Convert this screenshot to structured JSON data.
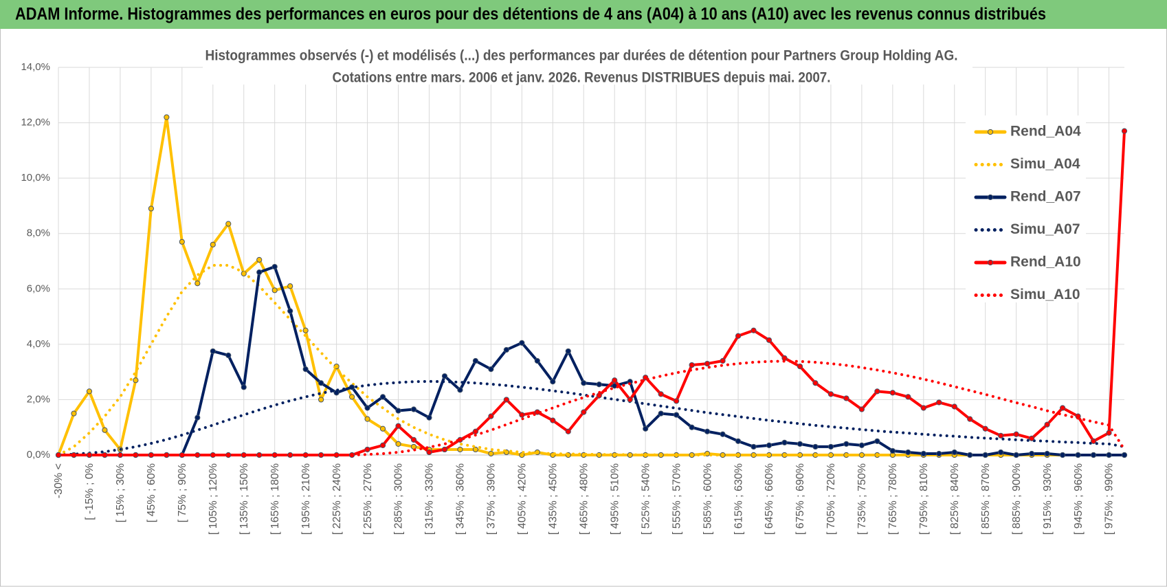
{
  "header": {
    "title": "ADAM Informe. Histogrammes des performances en euros pour des détentions de 4 ans (A04) à 10 ans (A10) avec les revenus connus distribués"
  },
  "chart_data": {
    "type": "line",
    "title": "Histogrammes observés (-) et modélisés (...) des performances par durées de détention pour Partners Group Holding AG.",
    "subtitle": "Cotations entre mars. 2006 et janv. 2026. Revenus DISTRIBUES depuis mai. 2007.",
    "categories": [
      "-30% <",
      null,
      "[ -15% ; 0%",
      null,
      "[ 15% ; 30%",
      null,
      "[ 45% ; 60%",
      null,
      "[ 75% ; 90%",
      null,
      "[ 105% ; 120%",
      null,
      "[ 135% ; 150%",
      null,
      "[ 165% ; 180%",
      null,
      "[ 195% ; 210%",
      null,
      "[ 225% ; 240%",
      null,
      "[ 255% ; 270%",
      null,
      "[ 285% ; 300%",
      null,
      "[ 315% ; 330%",
      null,
      "[ 345% ; 360%",
      null,
      "[ 375% ; 390%",
      null,
      "[ 405% ; 420%",
      null,
      "[ 435% ; 450%",
      null,
      "[ 465% ; 480%",
      null,
      "[ 495% ; 510%",
      null,
      "[ 525% ; 540%",
      null,
      "[ 555% ; 570%",
      null,
      "[ 585% ; 600%",
      null,
      "[ 615% ; 630%",
      null,
      "[ 645% ; 660%",
      null,
      "[ 675% ; 690%",
      null,
      "[ 705% ; 720%",
      null,
      "[ 735% ; 750%",
      null,
      "[ 765% ; 780%",
      null,
      "[ 795% ; 810%",
      null,
      "[ 825% ; 840%",
      null,
      "[ 855% ; 870%",
      null,
      "[ 885% ; 900%",
      null,
      "[ 915% ; 930%",
      null,
      "[ 945% ; 960%",
      null,
      "[ 975% ; 990%",
      null
    ],
    "ylim": [
      0,
      14
    ],
    "yticks": [
      {
        "value": 0,
        "label": "0,0%"
      },
      {
        "value": 2,
        "label": "2,0%"
      },
      {
        "value": 4,
        "label": "4,0%"
      },
      {
        "value": 6,
        "label": "6,0%"
      },
      {
        "value": 8,
        "label": "8,0%"
      },
      {
        "value": 10,
        "label": "10,0%"
      },
      {
        "value": 12,
        "label": "12,0%"
      },
      {
        "value": 14,
        "label": "14,0%"
      }
    ],
    "grid": true,
    "legend": "right",
    "series": [
      {
        "name": "Rend_A04",
        "color": "#ffc000",
        "line_style": "solid",
        "markers": true,
        "values": [
          0,
          1.5,
          2.3,
          0.9,
          0.2,
          2.7,
          8.9,
          12.2,
          7.7,
          6.2,
          7.6,
          8.35,
          6.55,
          7.05,
          5.95,
          6.1,
          4.5,
          2.0,
          3.2,
          2.1,
          1.3,
          0.95,
          0.4,
          0.3,
          0.2,
          0.2,
          0.2,
          0.2,
          0.05,
          0.1,
          0,
          0.1,
          0,
          0,
          0,
          0,
          0,
          0,
          0,
          0,
          0,
          0,
          0.05,
          0,
          0,
          0,
          0,
          0,
          0,
          0,
          0,
          0,
          0,
          0,
          0,
          0,
          0,
          0,
          0,
          0,
          0,
          0,
          0,
          0,
          0,
          0,
          0,
          0,
          0,
          0
        ]
      },
      {
        "name": "Simu_A04",
        "color": "#ffc000",
        "line_style": "dotted",
        "markers": false,
        "values": [
          0,
          0.3,
          0.8,
          1.4,
          2.1,
          3.0,
          4.0,
          5.0,
          5.9,
          6.5,
          6.85,
          6.85,
          6.6,
          6.1,
          5.5,
          4.9,
          4.3,
          3.7,
          3.1,
          2.6,
          2.1,
          1.7,
          1.3,
          1.0,
          0.75,
          0.55,
          0.4,
          0.3,
          0.2,
          0.15,
          0.1,
          0.07,
          0.05,
          0.04,
          0.03,
          0.02,
          0.02,
          0.01,
          0.01,
          0.01,
          0,
          0,
          0,
          0,
          0,
          0,
          0,
          0,
          0,
          0,
          0,
          0,
          0,
          0,
          0,
          0,
          0,
          0,
          0,
          0,
          0,
          0,
          0,
          0,
          0,
          0,
          0,
          0,
          0,
          0
        ]
      },
      {
        "name": "Rend_A07",
        "color": "#002060",
        "line_style": "solid",
        "markers": true,
        "values": [
          0,
          0,
          0,
          0,
          0,
          0,
          0,
          0,
          0,
          1.35,
          3.75,
          3.6,
          2.45,
          6.6,
          6.8,
          5.2,
          3.1,
          2.6,
          2.25,
          2.45,
          1.7,
          2.1,
          1.6,
          1.65,
          1.35,
          2.85,
          2.35,
          3.4,
          3.1,
          3.8,
          4.05,
          3.4,
          2.65,
          3.75,
          2.6,
          2.55,
          2.5,
          2.65,
          0.95,
          1.5,
          1.45,
          1.0,
          0.85,
          0.75,
          0.5,
          0.3,
          0.35,
          0.45,
          0.4,
          0.3,
          0.3,
          0.4,
          0.35,
          0.5,
          0.15,
          0.1,
          0.05,
          0.05,
          0.1,
          0,
          0,
          0.1,
          0,
          0.05,
          0.05,
          0,
          0,
          0,
          0,
          0
        ]
      },
      {
        "name": "Simu_A07",
        "color": "#002060",
        "line_style": "dotted",
        "markers": false,
        "values": [
          0,
          0.03,
          0.07,
          0.12,
          0.2,
          0.3,
          0.42,
          0.56,
          0.72,
          0.9,
          1.08,
          1.27,
          1.45,
          1.63,
          1.8,
          1.96,
          2.1,
          2.23,
          2.34,
          2.44,
          2.52,
          2.58,
          2.62,
          2.65,
          2.66,
          2.65,
          2.63,
          2.6,
          2.56,
          2.51,
          2.45,
          2.39,
          2.32,
          2.25,
          2.17,
          2.09,
          2.01,
          1.93,
          1.85,
          1.77,
          1.69,
          1.61,
          1.53,
          1.46,
          1.39,
          1.32,
          1.25,
          1.19,
          1.13,
          1.07,
          1.02,
          0.97,
          0.92,
          0.87,
          0.83,
          0.79,
          0.75,
          0.71,
          0.68,
          0.64,
          0.61,
          0.58,
          0.55,
          0.52,
          0.5,
          0.47,
          0.45,
          0.42,
          0.4,
          0.3
        ]
      },
      {
        "name": "Rend_A10",
        "color": "#ff0000",
        "line_style": "solid",
        "markers": true,
        "values": [
          0,
          0,
          0,
          0,
          0,
          0,
          0,
          0,
          0,
          0,
          0,
          0,
          0,
          0,
          0,
          0,
          0,
          0,
          0,
          0,
          0.2,
          0.35,
          1.05,
          0.55,
          0.1,
          0.2,
          0.55,
          0.85,
          1.4,
          2.0,
          1.45,
          1.55,
          1.25,
          0.85,
          1.55,
          2.15,
          2.7,
          2.0,
          2.8,
          2.2,
          1.95,
          3.25,
          3.3,
          3.4,
          4.3,
          4.5,
          4.15,
          3.5,
          3.2,
          2.6,
          2.2,
          2.05,
          1.65,
          2.3,
          2.25,
          2.1,
          1.7,
          1.9,
          1.75,
          1.3,
          0.95,
          0.7,
          0.75,
          0.6,
          1.1,
          1.7,
          1.4,
          0.5,
          0.8,
          11.7
        ]
      },
      {
        "name": "Simu_A10",
        "color": "#ff0000",
        "line_style": "dotted",
        "markers": false,
        "values": [
          0,
          0,
          0,
          0,
          0,
          0,
          0,
          0,
          0,
          0,
          0,
          0,
          0,
          0,
          0,
          0,
          0,
          0,
          0,
          0,
          0.02,
          0.05,
          0.1,
          0.18,
          0.28,
          0.4,
          0.55,
          0.72,
          0.9,
          1.1,
          1.3,
          1.5,
          1.7,
          1.9,
          2.08,
          2.26,
          2.43,
          2.58,
          2.72,
          2.85,
          2.97,
          3.07,
          3.16,
          3.24,
          3.3,
          3.35,
          3.38,
          3.39,
          3.38,
          3.35,
          3.3,
          3.24,
          3.16,
          3.07,
          2.97,
          2.86,
          2.74,
          2.61,
          2.47,
          2.33,
          2.19,
          2.04,
          1.89,
          1.75,
          1.6,
          1.46,
          1.33,
          1.2,
          1.08,
          0.2
        ]
      }
    ]
  }
}
